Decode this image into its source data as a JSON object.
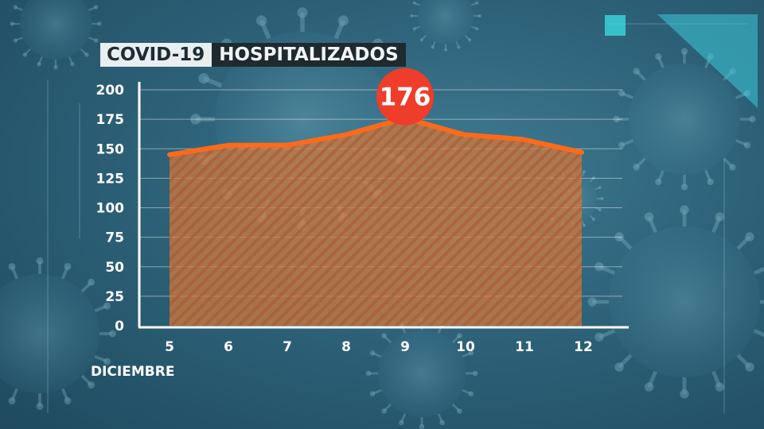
{
  "header": {
    "tag": "COVID-19",
    "title": "HOSPITALIZADOS"
  },
  "colors": {
    "line": "#ff6a1a",
    "area": "#d87a3c",
    "badge": "#ee3d2a",
    "axis": "#ffffff"
  },
  "chart_data": {
    "type": "area",
    "x": [
      "5",
      "6",
      "7",
      "8",
      "9",
      "10",
      "11",
      "12"
    ],
    "xlabel": "DICIEMBRE",
    "ylabel": "",
    "ylim": [
      0,
      200
    ],
    "yticks": [
      0,
      25,
      50,
      75,
      100,
      125,
      150,
      175,
      200
    ],
    "grid": true,
    "series": [
      {
        "values": [
          145,
          153,
          153,
          162,
          176,
          162,
          158,
          147
        ]
      }
    ],
    "annotations": [
      {
        "x": "9",
        "label": "176"
      }
    ]
  }
}
